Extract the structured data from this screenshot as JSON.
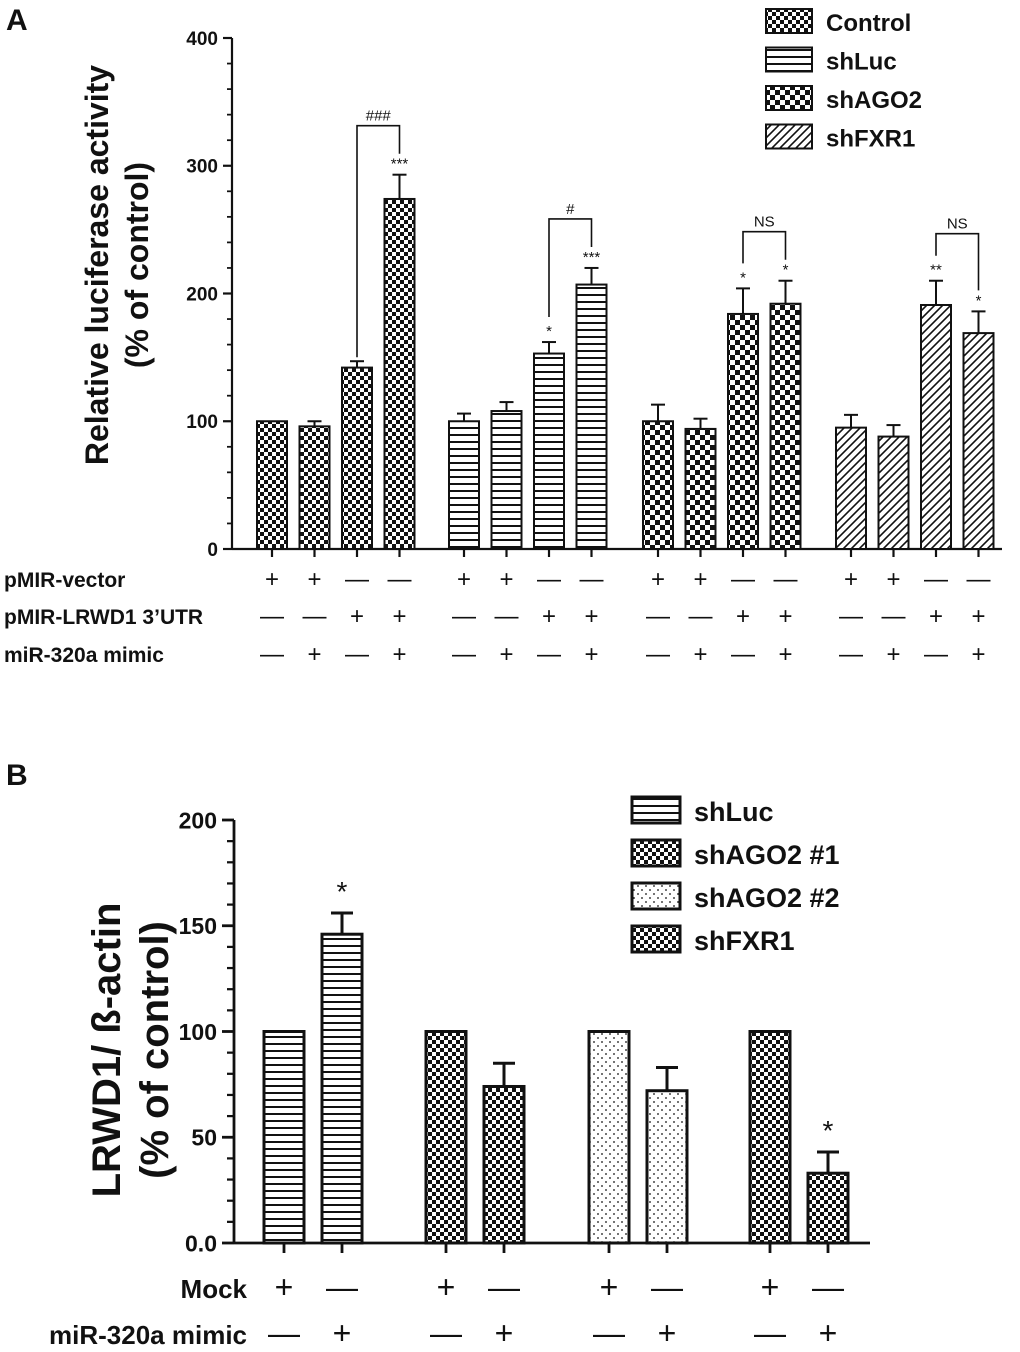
{
  "chart_data": [
    {
      "type": "bar",
      "panel": "A",
      "title": "",
      "xlabel": "",
      "ylabel_line1": "Relative luciferase activity",
      "ylabel_line2": "(% of control)",
      "ylim": [
        0,
        400
      ],
      "yticks": [
        0,
        100,
        200,
        300,
        400
      ],
      "yticklabels": [
        "0",
        "100",
        "200",
        "300",
        "400"
      ],
      "legend_position": "top-right",
      "legend": [
        "Control",
        "shLuc",
        "shAGO2",
        "shFXR1"
      ],
      "condition_rows": [
        {
          "label": "pMIR-vector",
          "marks": [
            "+",
            "+",
            "—",
            "—"
          ]
        },
        {
          "label": "pMIR-LRWD1 3’UTR",
          "marks": [
            "—",
            "—",
            "+",
            "+"
          ]
        },
        {
          "label": "miR-320a mimic",
          "marks": [
            "—",
            "+",
            "—",
            "+"
          ]
        }
      ],
      "series": [
        {
          "name": "Control",
          "pattern": "check",
          "values": [
            100,
            96,
            142,
            274
          ],
          "errors": [
            0,
            4,
            5,
            19
          ],
          "stars": [
            "",
            "",
            "",
            "***"
          ],
          "bracket_label": "###"
        },
        {
          "name": "shLuc",
          "pattern": "hstripe",
          "values": [
            100,
            108,
            153,
            207
          ],
          "errors": [
            6,
            7,
            9,
            13
          ],
          "stars": [
            "",
            "",
            "*",
            "***"
          ],
          "bracket_label": "#"
        },
        {
          "name": "shAGO2",
          "pattern": "bigcheck",
          "values": [
            100,
            94,
            184,
            192
          ],
          "errors": [
            13,
            8,
            20,
            18
          ],
          "stars": [
            "",
            "",
            "*",
            "*"
          ],
          "bracket_label": "NS"
        },
        {
          "name": "shFXR1",
          "pattern": "diag",
          "values": [
            95,
            88,
            191,
            169
          ],
          "errors": [
            10,
            9,
            19,
            17
          ],
          "stars": [
            "",
            "",
            "**",
            "*"
          ],
          "bracket_label": "NS"
        }
      ]
    },
    {
      "type": "bar",
      "panel": "B",
      "title": "",
      "xlabel": "",
      "ylabel_line1": "LRWD1/ ß-actin",
      "ylabel_line2": "(% of control)",
      "ylim": [
        0,
        200
      ],
      "yticks": [
        0,
        50,
        100,
        150,
        200
      ],
      "yticklabels": [
        "0.0",
        "50",
        "100",
        "150",
        "200"
      ],
      "legend_position": "top-right",
      "legend": [
        "shLuc",
        "shAGO2 #1",
        "shAGO2 #2",
        "shFXR1"
      ],
      "condition_rows": [
        {
          "label": "Mock",
          "marks": [
            "+",
            "—"
          ]
        },
        {
          "label": "miR-320a mimic",
          "marks": [
            "—",
            "+"
          ]
        }
      ],
      "series": [
        {
          "name": "shLuc",
          "pattern": "hstripe",
          "values": [
            100,
            146
          ],
          "errors": [
            0,
            10
          ],
          "stars": [
            "",
            "*"
          ]
        },
        {
          "name": "shAGO2 #1",
          "pattern": "check",
          "values": [
            100,
            74
          ],
          "errors": [
            0,
            11
          ],
          "stars": [
            "",
            ""
          ]
        },
        {
          "name": "shAGO2 #2",
          "pattern": "dots",
          "values": [
            100,
            72
          ],
          "errors": [
            0,
            11
          ],
          "stars": [
            "",
            ""
          ]
        },
        {
          "name": "shFXR1",
          "pattern": "check",
          "values": [
            100,
            33
          ],
          "errors": [
            0,
            10
          ],
          "stars": [
            "",
            "*"
          ]
        }
      ]
    }
  ]
}
